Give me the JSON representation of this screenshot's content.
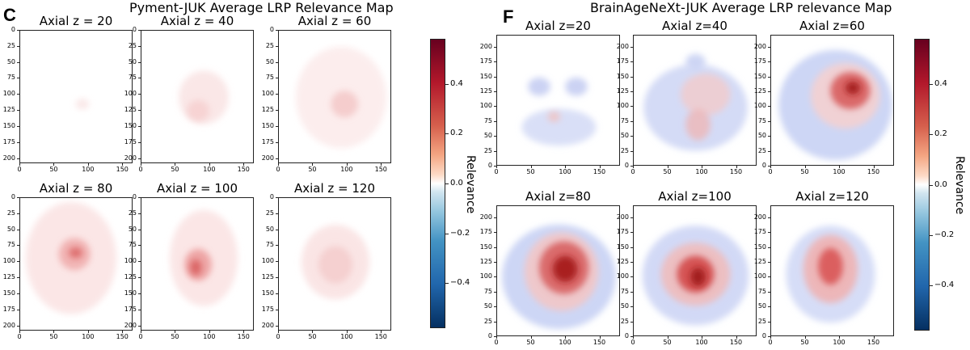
{
  "left": {
    "letter": "C",
    "title": "Pyment-JUK Average LRP Relevance Map",
    "subtitles": [
      "Axial z = 20",
      "Axial z = 40",
      "Axial z = 60",
      "Axial z = 80",
      "Axial z = 100",
      "Axial z = 120"
    ],
    "colorbar_label": "Relevance",
    "colorbar_ticks": [
      "0.4",
      "0.2",
      "0.0",
      "−0.2",
      "−0.4"
    ]
  },
  "right": {
    "letter": "F",
    "title": "BrainAgeNeXt-JUK Average LRP relevance Map",
    "subtitles": [
      "Axial z=20",
      "Axial z=40",
      "Axial z=60",
      "Axial z=80",
      "Axial z=100",
      "Axial z=120"
    ],
    "colorbar_label": "Relevance",
    "colorbar_ticks": [
      "0.4",
      "0.2",
      "0.0",
      "−0.2",
      "−0.4"
    ]
  },
  "chart_data": [
    {
      "type": "heatmap",
      "title": "Pyment-JUK Average LRP Relevance Map",
      "panels": [
        "Axial z = 20",
        "Axial z = 40",
        "Axial z = 60",
        "Axial z = 80",
        "Axial z = 100",
        "Axial z = 120"
      ],
      "x_ticks": [
        "0",
        "50",
        "100",
        "150"
      ],
      "y_ticks": [
        "0",
        "25",
        "50",
        "75",
        "100",
        "125",
        "150",
        "175",
        "200"
      ],
      "xlim": [
        0,
        165
      ],
      "ylim": [
        208,
        0
      ],
      "colorbar": {
        "label": "Relevance",
        "range": [
          -0.58,
          0.58
        ],
        "ticks": [
          0.4,
          0.2,
          0.0,
          -0.2,
          -0.4
        ],
        "colormap": "seismic"
      },
      "colors": {
        "positive": "#b2182b",
        "negative": "#2166ac",
        "max": "#67001f",
        "min": "#053061"
      }
    },
    {
      "type": "heatmap",
      "title": "BrainAgeNeXt-JUK Average LRP relevance Map",
      "panels": [
        "Axial z=20",
        "Axial z=40",
        "Axial z=60",
        "Axial z=80",
        "Axial z=100",
        "Axial z=120"
      ],
      "x_ticks": [
        "0",
        "50",
        "100",
        "150"
      ],
      "y_ticks": [
        "0",
        "25",
        "50",
        "75",
        "100",
        "125",
        "150",
        "175",
        "200"
      ],
      "xlim": [
        0,
        180
      ],
      "ylim": [
        0,
        220
      ],
      "colorbar": {
        "label": "Relevance",
        "range": [
          -0.58,
          0.58
        ],
        "ticks": [
          0.4,
          0.2,
          0.0,
          -0.2,
          -0.4
        ],
        "colormap": "seismic"
      },
      "colors": {
        "positive": "#b2182b",
        "negative": "#2166ac",
        "max": "#67001f",
        "min": "#053061"
      }
    }
  ]
}
